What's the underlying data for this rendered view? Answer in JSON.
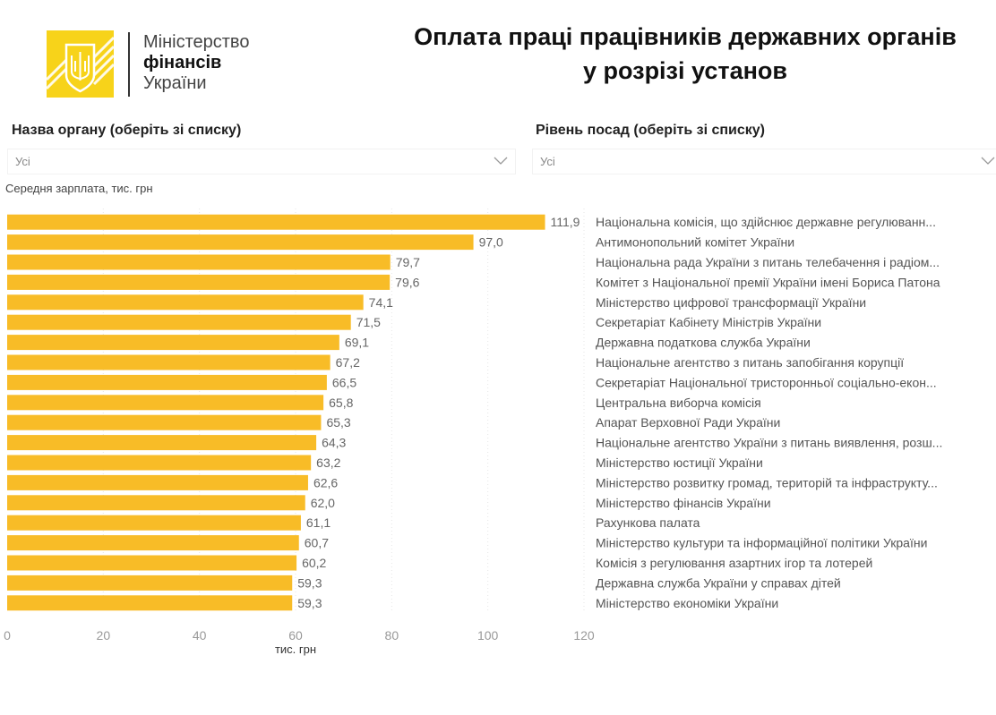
{
  "header": {
    "logo": {
      "icon": "trident-emblem-icon",
      "line1": "Міністерство",
      "line2": "фінансів",
      "line3": "України",
      "brand_color": "#F7D31A"
    },
    "title_line1": "Оплата праці працівників державних органів",
    "title_line2": "у розрізі установ"
  },
  "filters": {
    "organ": {
      "label": "Назва органу (оберіть зі списку)",
      "value": "Усі"
    },
    "level": {
      "label": "Рівень посад (оберіть зі списку)",
      "value": "Усі"
    }
  },
  "chart_subtitle": "Середня зарплата, тис. грн",
  "chart_data": {
    "type": "bar",
    "orientation": "horizontal",
    "title": "Середня зарплата, тис. грн",
    "xlabel": "тис. грн",
    "ylabel": "",
    "xlim": [
      0,
      120
    ],
    "xticks": [
      0,
      20,
      40,
      60,
      80,
      100,
      120
    ],
    "grid": true,
    "bar_color": "#F8BC27",
    "categories": [
      "Національна комісія, що здійснює державне регулюванн...",
      "Антимонопольний комітет України",
      "Національна рада України з питань телебачення і радіом...",
      "Комітет з Національної премії України імені Бориса Патона",
      "Міністерство цифрової трансформації України",
      "Секретаріат Кабінету Міністрів України",
      "Державна податкова служба України",
      "Національне агентство з питань запобігання корупції",
      "Секретаріат Національної тристоронньої соціально-екон...",
      "Центральна виборча комісія",
      "Апарат Верховної Ради України",
      "Національне агентство України з питань виявлення, розш...",
      "Міністерство юстиції України",
      "Міністерство розвитку громад, територій та інфраструкту...",
      "Міністерство фінансів України",
      "Рахункова палата",
      "Міністерство культури та інформаційної політики України",
      "Комісія з регулювання азартних ігор та лотерей",
      "Державна служба України у справах дітей",
      "Міністерство економіки України"
    ],
    "values": [
      111.9,
      97.0,
      79.7,
      79.6,
      74.1,
      71.5,
      69.1,
      67.2,
      66.5,
      65.8,
      65.3,
      64.3,
      63.2,
      62.6,
      62.0,
      61.1,
      60.7,
      60.2,
      59.3,
      59.3
    ],
    "value_labels": [
      "111,9",
      "97,0",
      "79,7",
      "79,6",
      "74,1",
      "71,5",
      "69,1",
      "67,2",
      "66,5",
      "65,8",
      "65,3",
      "64,3",
      "63,2",
      "62,6",
      "62,0",
      "61,1",
      "60,7",
      "60,2",
      "59,3",
      "59,3"
    ]
  }
}
